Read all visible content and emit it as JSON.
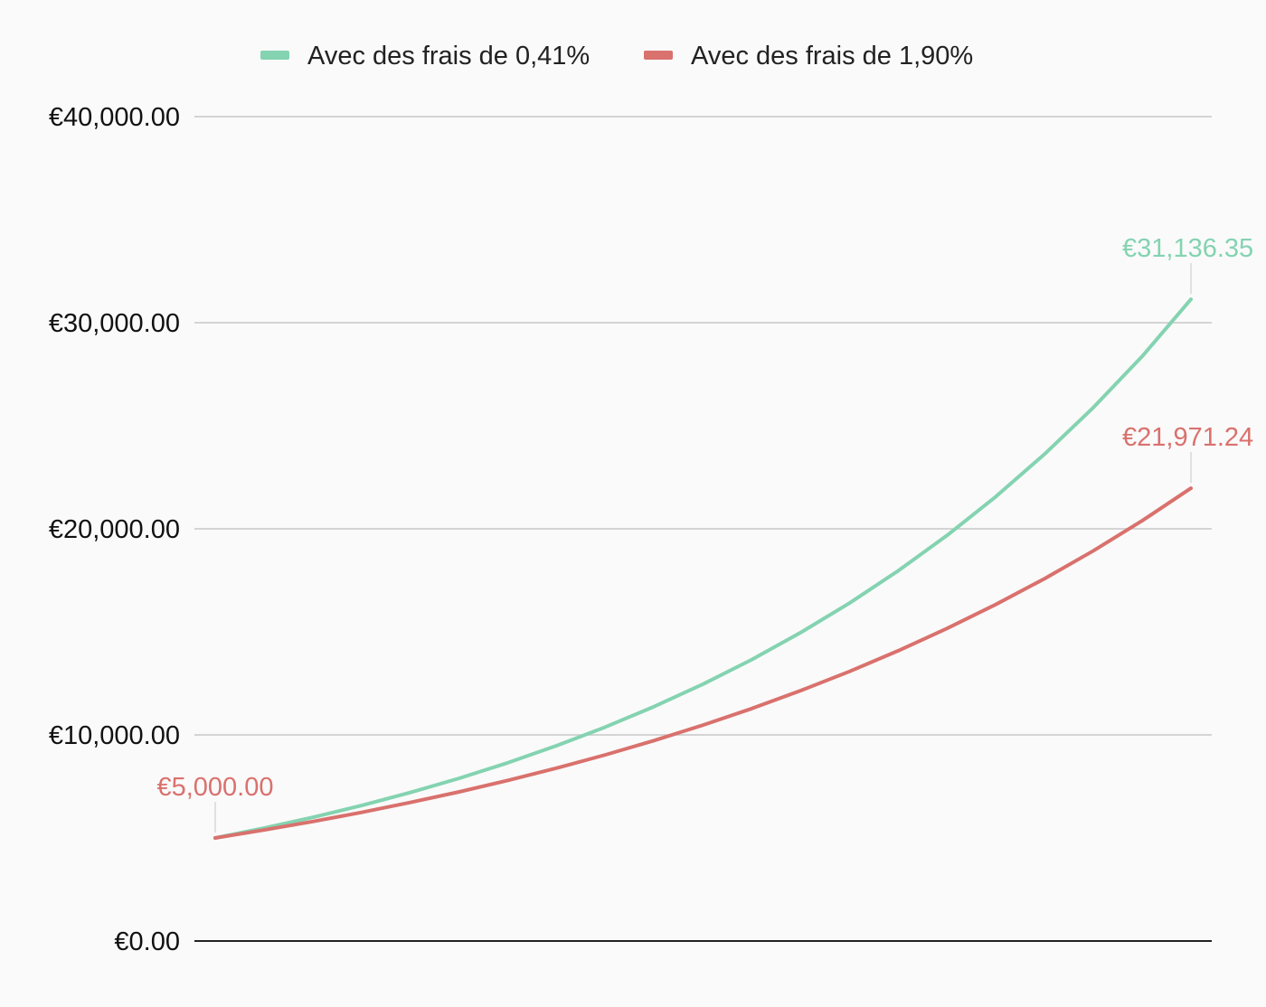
{
  "chart_data": {
    "type": "line",
    "title": "",
    "xlabel": "",
    "ylabel": "",
    "ylim": [
      0,
      40000
    ],
    "y_ticks": [
      "€0.00",
      "€10,000.00",
      "€20,000.00",
      "€30,000.00",
      "€40,000.00"
    ],
    "y_tick_values": [
      0,
      10000,
      20000,
      30000,
      40000
    ],
    "grid": true,
    "legend_position": "top",
    "x": [
      0,
      1,
      2,
      3,
      4,
      5,
      6,
      7,
      8,
      9,
      10,
      11,
      12,
      13,
      14,
      15,
      16,
      17,
      18,
      19,
      20
    ],
    "series": [
      {
        "name": "Avec des frais de 0,41%",
        "color": "#84d3b1",
        "values": [
          5000,
          5478,
          6002,
          6576,
          7205,
          7894,
          8650,
          9477,
          10384,
          11377,
          12465,
          13657,
          14963,
          16394,
          17963,
          19681,
          21563,
          23626,
          25886,
          28362,
          31136.35
        ]
      },
      {
        "name": "Avec des frais de 1,90%",
        "color": "#d9716d",
        "values": [
          5000,
          5384,
          5797,
          6242,
          6722,
          7238,
          7793,
          8392,
          9036,
          9730,
          10477,
          11281,
          12148,
          13080,
          14085,
          15166,
          16331,
          17585,
          18935,
          20389,
          21971.24
        ]
      }
    ],
    "data_labels": [
      {
        "text": "€5,000.00",
        "series_index": 1,
        "point_index": 0
      },
      {
        "text": "€31,136.35",
        "series_index": 0,
        "point_index": 20
      },
      {
        "text": "€21,971.24",
        "series_index": 1,
        "point_index": 20
      }
    ]
  }
}
